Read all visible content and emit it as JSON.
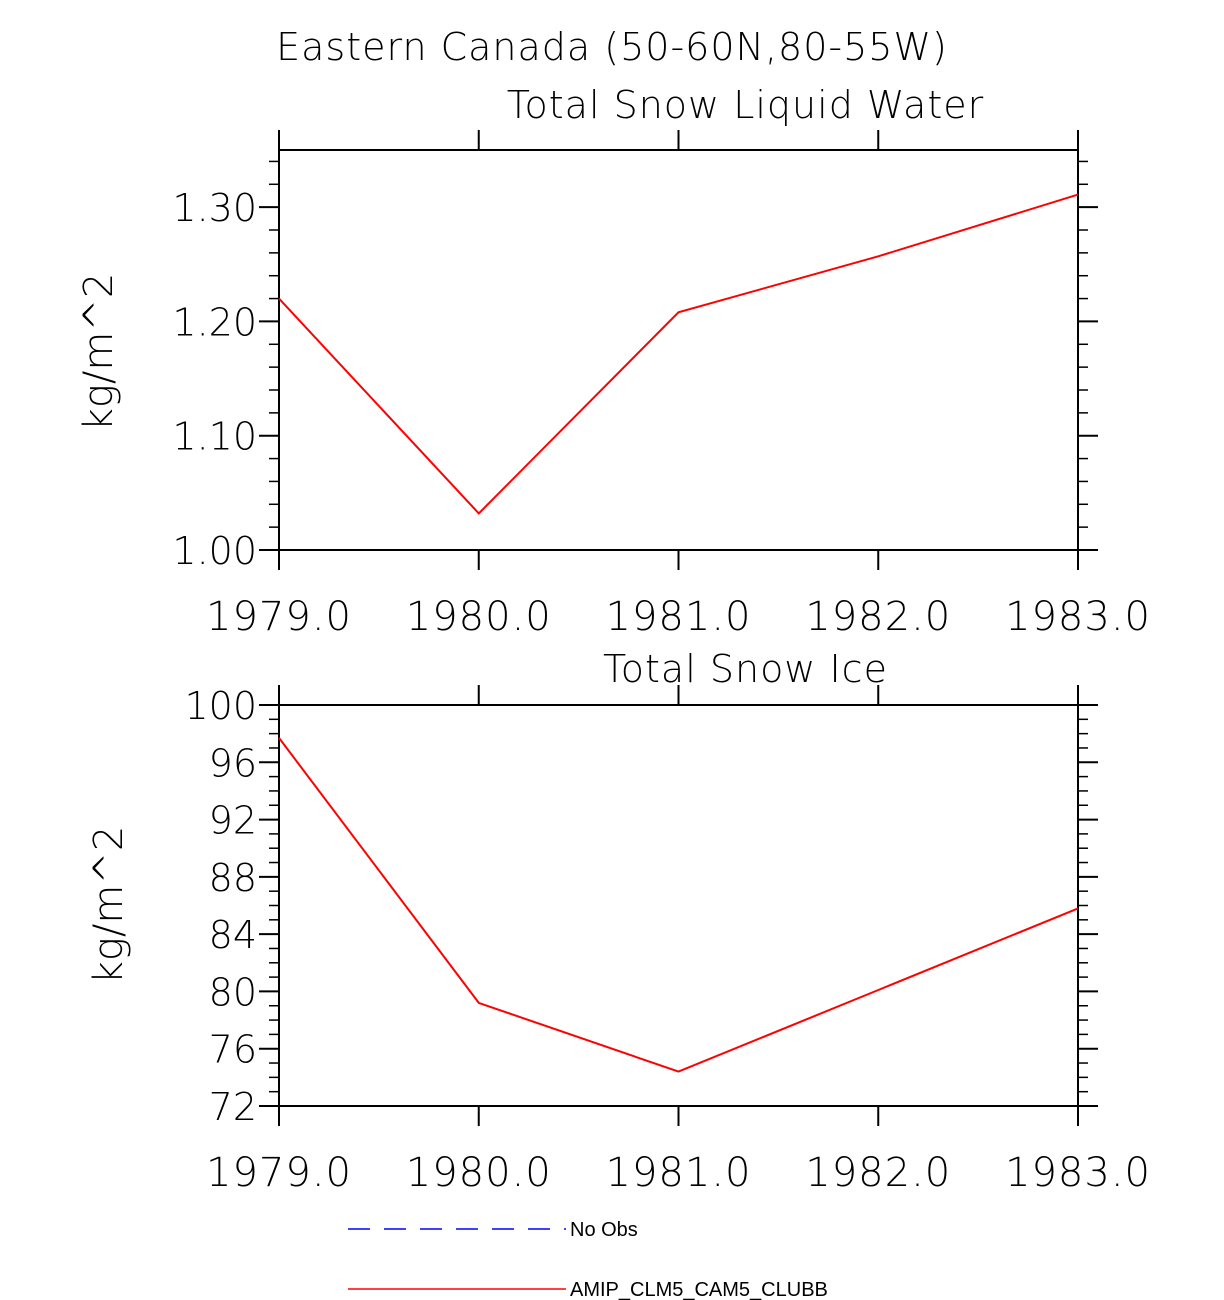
{
  "title": "Eastern Canada (50-60N,80-55W)",
  "colors": {
    "model": "#ff0000",
    "obs": "#0000ff",
    "axis": "#000000"
  },
  "chart_data": [
    {
      "type": "line",
      "title": "Total Snow Liquid Water",
      "ylabel": "kg/m^2",
      "xlim": [
        1979.0,
        1983.0
      ],
      "ylim": [
        1.0,
        1.35
      ],
      "xticks": [
        1979.0,
        1980.0,
        1981.0,
        1982.0,
        1983.0
      ],
      "xtick_labels": [
        "1979.0",
        "1980.0",
        "1981.0",
        "1982.0",
        "1983.0"
      ],
      "yticks": [
        1.0,
        1.1,
        1.2,
        1.3
      ],
      "ytick_labels": [
        "1.00",
        "1.10",
        "1.20",
        "1.30"
      ],
      "series": [
        {
          "name": "AMIP_CLM5_CAM5_CLUBB",
          "x": [
            1979.0,
            1980.0,
            1981.0,
            1982.0,
            1983.0
          ],
          "values": [
            1.22,
            1.032,
            1.208,
            1.257,
            1.311
          ]
        }
      ]
    },
    {
      "type": "line",
      "title": "Total Snow Ice",
      "ylabel": "kg/m^2",
      "xlim": [
        1979.0,
        1983.0
      ],
      "ylim": [
        72,
        100
      ],
      "xticks": [
        1979.0,
        1980.0,
        1981.0,
        1982.0,
        1983.0
      ],
      "xtick_labels": [
        "1979.0",
        "1980.0",
        "1981.0",
        "1982.0",
        "1983.0"
      ],
      "yticks": [
        72,
        76,
        80,
        84,
        88,
        92,
        96,
        100
      ],
      "ytick_labels": [
        "72",
        "76",
        "80",
        "84",
        "88",
        "92",
        "96",
        "100"
      ],
      "series": [
        {
          "name": "AMIP_CLM5_CAM5_CLUBB",
          "x": [
            1979.0,
            1980.0,
            1981.0,
            1982.0,
            1983.0
          ],
          "values": [
            97.7,
            79.2,
            74.4,
            80.1,
            85.8
          ]
        }
      ]
    }
  ],
  "legend": [
    {
      "label": "No Obs",
      "style": "dashed",
      "color": "#0000ff"
    },
    {
      "label": "AMIP_CLM5_CAM5_CLUBB",
      "style": "solid",
      "color": "#ff0000"
    }
  ]
}
